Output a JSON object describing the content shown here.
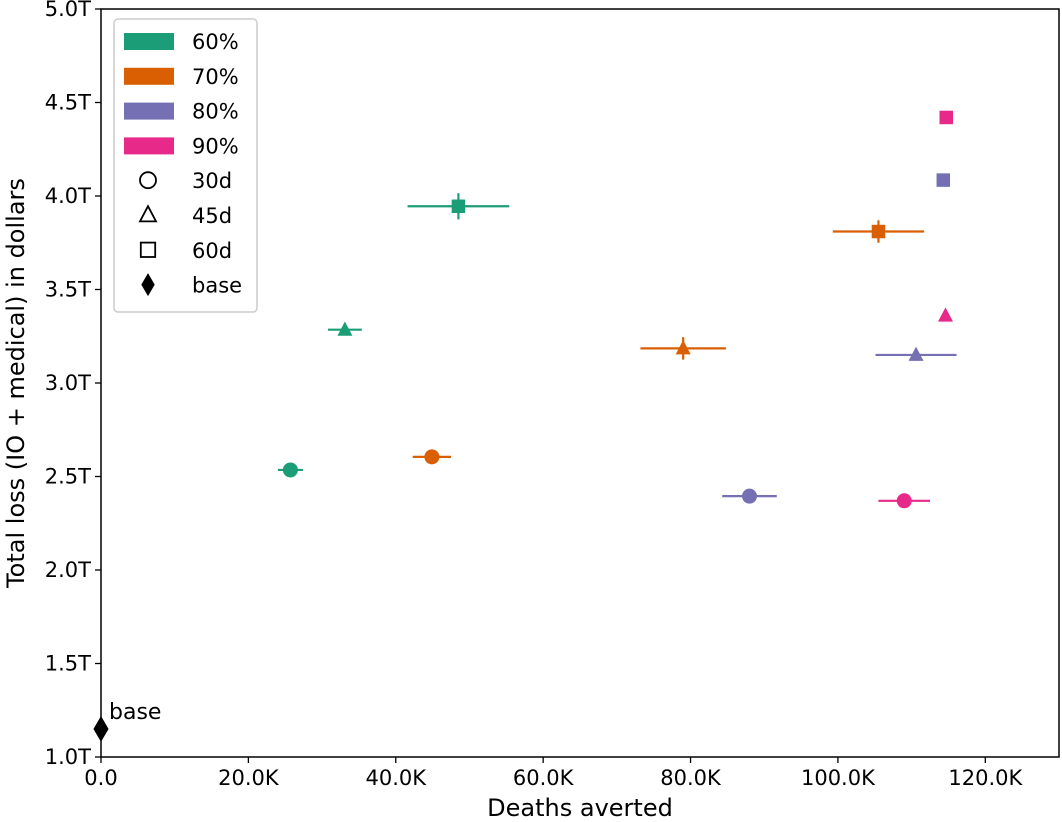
{
  "chart_data": {
    "type": "scatter",
    "title": "",
    "xlabel": "Deaths averted",
    "ylabel": "Total loss (IO + medical) in dollars",
    "xlim": [
      0,
      130000
    ],
    "ylim": [
      1.0,
      5.0
    ],
    "x_ticks": [
      {
        "value": 0,
        "label": "0.0"
      },
      {
        "value": 20000,
        "label": "20.0K"
      },
      {
        "value": 40000,
        "label": "40.0K"
      },
      {
        "value": 60000,
        "label": "60.0K"
      },
      {
        "value": 80000,
        "label": "80.0K"
      },
      {
        "value": 100000,
        "label": "100.0K"
      },
      {
        "value": 120000,
        "label": "120.0K"
      }
    ],
    "y_ticks": [
      {
        "value": 1.0,
        "label": "1.0T"
      },
      {
        "value": 1.5,
        "label": "1.5T"
      },
      {
        "value": 2.0,
        "label": "2.0T"
      },
      {
        "value": 2.5,
        "label": "2.5T"
      },
      {
        "value": 3.0,
        "label": "3.0T"
      },
      {
        "value": 3.5,
        "label": "3.5T"
      },
      {
        "value": 4.0,
        "label": "4.0T"
      },
      {
        "value": 4.5,
        "label": "4.5T"
      },
      {
        "value": 5.0,
        "label": "5.0T"
      }
    ],
    "y_unit": "trillion dollars",
    "grid": false,
    "legend_position": "top-left",
    "legend": [
      {
        "label": "60%",
        "kind": "color",
        "color": "#1b9e77"
      },
      {
        "label": "70%",
        "kind": "color",
        "color": "#d95f02"
      },
      {
        "label": "80%",
        "kind": "color",
        "color": "#7570b3"
      },
      {
        "label": "90%",
        "kind": "color",
        "color": "#e7298a"
      },
      {
        "label": "30d",
        "kind": "marker",
        "marker": "circle"
      },
      {
        "label": "45d",
        "kind": "marker",
        "marker": "triangle"
      },
      {
        "label": "60d",
        "kind": "marker",
        "marker": "square"
      },
      {
        "label": "base",
        "kind": "marker",
        "marker": "diamond"
      }
    ],
    "series": [
      {
        "name": "60%",
        "color": "#1b9e77",
        "points": [
          {
            "duration": "30d",
            "marker": "circle",
            "x": 25700,
            "y": 2.535,
            "xerr": 1700,
            "yerr": 0.01
          },
          {
            "duration": "45d",
            "marker": "triangle",
            "x": 33100,
            "y": 3.285,
            "xerr": 2300,
            "yerr": 0.01
          },
          {
            "duration": "60d",
            "marker": "square",
            "x": 48500,
            "y": 3.945,
            "xerr": 6900,
            "yerr": 0.07
          }
        ]
      },
      {
        "name": "70%",
        "color": "#d95f02",
        "points": [
          {
            "duration": "30d",
            "marker": "circle",
            "x": 44900,
            "y": 2.605,
            "xerr": 2600,
            "yerr": 0.01
          },
          {
            "duration": "45d",
            "marker": "triangle",
            "x": 79000,
            "y": 3.185,
            "xerr": 5800,
            "yerr": 0.06
          },
          {
            "duration": "60d",
            "marker": "square",
            "x": 105500,
            "y": 3.81,
            "xerr": 6200,
            "yerr": 0.06
          }
        ]
      },
      {
        "name": "80%",
        "color": "#7570b3",
        "points": [
          {
            "duration": "30d",
            "marker": "circle",
            "x": 88000,
            "y": 2.395,
            "xerr": 3700,
            "yerr": 0.01
          },
          {
            "duration": "45d",
            "marker": "triangle",
            "x": 110600,
            "y": 3.15,
            "xerr": 5500,
            "yerr": 0.03
          },
          {
            "duration": "60d",
            "marker": "square",
            "x": 114300,
            "y": 4.085,
            "xerr": 500,
            "yerr": 0.01
          }
        ]
      },
      {
        "name": "90%",
        "color": "#e7298a",
        "points": [
          {
            "duration": "30d",
            "marker": "circle",
            "x": 109000,
            "y": 2.37,
            "xerr": 3500,
            "yerr": 0.01
          },
          {
            "duration": "45d",
            "marker": "triangle",
            "x": 114600,
            "y": 3.36,
            "xerr": 500,
            "yerr": 0.01
          },
          {
            "duration": "60d",
            "marker": "square",
            "x": 114700,
            "y": 4.42,
            "xerr": 500,
            "yerr": 0.01
          }
        ]
      }
    ],
    "base": {
      "label": "base",
      "marker": "diamond",
      "color": "#000000",
      "x": 0,
      "y": 1.15
    }
  }
}
